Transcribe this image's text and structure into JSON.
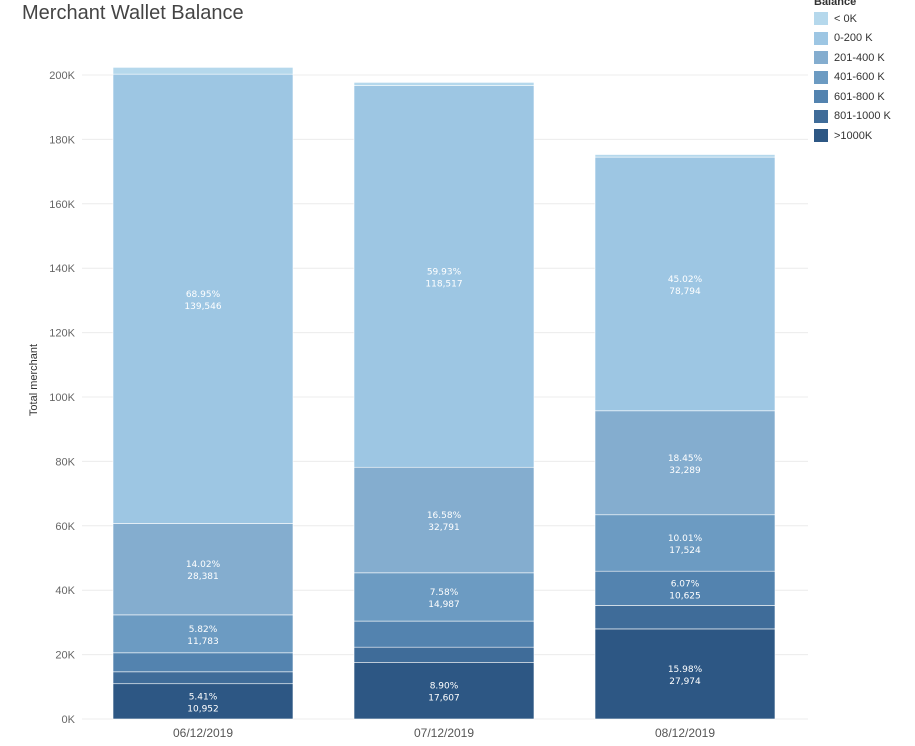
{
  "title": "Merchant Wallet Balance",
  "legend": {
    "title": "Balance",
    "items": [
      {
        "label": "< 0K",
        "color": "#b5d8ec"
      },
      {
        "label": "0-200 K",
        "color": "#9dc6e3"
      },
      {
        "label": "201-400 K",
        "color": "#84adcf"
      },
      {
        "label": "401-600 K",
        "color": "#6c9bc2"
      },
      {
        "label": "601-800 K",
        "color": "#5383af"
      },
      {
        "label": "801-1000 K",
        "color": "#3f6c99"
      },
      {
        "label": ">1000K",
        "color": "#2d5784"
      }
    ]
  },
  "chart_data": {
    "type": "bar",
    "stacked": true,
    "title": "Merchant Wallet Balance",
    "xlabel": "",
    "ylabel": "Total merchant",
    "ylim": [
      0,
      200000
    ],
    "yticks": [
      "0K",
      "20K",
      "40K",
      "60K",
      "80K",
      "100K",
      "120K",
      "140K",
      "160K",
      "180K",
      "200K"
    ],
    "categories": [
      "06/12/2019",
      "07/12/2019",
      "08/12/2019"
    ],
    "grid": true,
    "legend_position": "top-right",
    "series": [
      {
        "name": ">1000K",
        "values": [
          10952,
          17607,
          27974
        ],
        "labels": [
          [
            "5.41%",
            "10,952"
          ],
          [
            "8.90%",
            "17,607"
          ],
          [
            "15.98%",
            "27,974"
          ]
        ]
      },
      {
        "name": "801-1000 K",
        "values": [
          3700,
          4700,
          7300
        ],
        "labels": [
          null,
          null,
          null
        ]
      },
      {
        "name": "601-800 K",
        "values": [
          5900,
          8100,
          10625
        ],
        "labels": [
          null,
          null,
          [
            "6.07%",
            "10,625"
          ]
        ]
      },
      {
        "name": "401-600 K",
        "values": [
          11783,
          14987,
          17524
        ],
        "labels": [
          [
            "5.82%",
            "11,783"
          ],
          [
            "7.58%",
            "14,987"
          ],
          [
            "10.01%",
            "17,524"
          ]
        ]
      },
      {
        "name": "201-400 K",
        "values": [
          28381,
          32791,
          32289
        ],
        "labels": [
          [
            "14.02%",
            "28,381"
          ],
          [
            "16.58%",
            "32,791"
          ],
          [
            "18.45%",
            "32,289"
          ]
        ]
      },
      {
        "name": "0-200 K",
        "values": [
          139546,
          118517,
          78794
        ],
        "labels": [
          [
            "68.95%",
            "139,546"
          ],
          [
            "59.93%",
            "118,517"
          ],
          [
            "45.02%",
            "78,794"
          ]
        ]
      },
      {
        "name": "< 0K",
        "values": [
          2100,
          1000,
          800
        ],
        "labels": [
          null,
          null,
          null
        ]
      }
    ]
  }
}
